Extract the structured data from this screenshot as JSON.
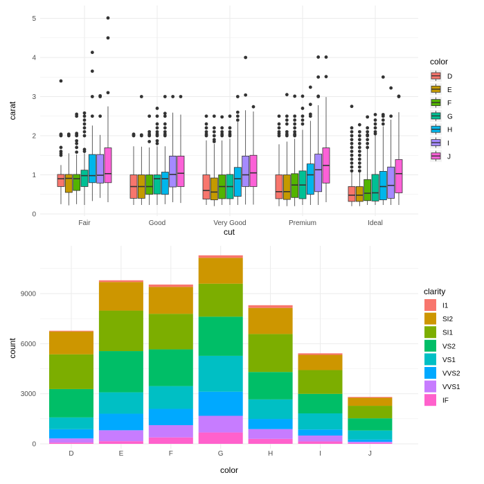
{
  "chart_data": [
    {
      "type": "boxplot",
      "xlabel": "cut",
      "ylabel": "carat",
      "categories": [
        "Fair",
        "Good",
        "Very Good",
        "Premium",
        "Ideal"
      ],
      "ylim": [
        0,
        5.1
      ],
      "yticks": [
        "0",
        "1",
        "2",
        "3",
        "4",
        "5"
      ],
      "grid": true,
      "legend": {
        "title": "color",
        "position": "right",
        "entries": [
          "D",
          "E",
          "F",
          "G",
          "H",
          "I",
          "J"
        ]
      },
      "colors": [
        "#F8766D",
        "#C49A00",
        "#53B400",
        "#00C094",
        "#00B6EB",
        "#A58AFF",
        "#FB61D7"
      ],
      "stats_order": [
        "whisker_low",
        "q1",
        "median",
        "q3",
        "whisker_high"
      ],
      "boxes": {
        "Fair": [
          {
            "stats": [
              0.25,
              0.7,
              0.9,
              1.01,
              1.25
            ],
            "outliers": [
              1.5,
              1.55,
              1.6,
              1.7,
              2.0,
              2.02,
              2.04,
              3.4
            ]
          },
          {
            "stats": [
              0.22,
              0.55,
              0.91,
              1.01,
              1.55
            ],
            "outliers": [
              2.0,
              2.02,
              2.04
            ]
          },
          {
            "stats": [
              0.25,
              0.6,
              0.9,
              1.01,
              1.52
            ],
            "outliers": [
              1.58,
              1.7,
              1.8,
              1.87,
              2.0,
              2.02,
              2.06,
              2.5,
              2.55
            ]
          },
          {
            "stats": [
              0.23,
              0.7,
              0.98,
              1.12,
              1.55
            ],
            "outliers": [
              1.6,
              1.65,
              2.0,
              2.1,
              2.2,
              2.3,
              2.4,
              2.5,
              2.58
            ]
          },
          {
            "stats": [
              0.33,
              0.8,
              0.98,
              1.52,
              2.26
            ],
            "outliers": [
              2.5,
              3.0,
              3.65,
              4.13
            ]
          },
          {
            "stats": [
              0.41,
              0.79,
              0.99,
              1.52,
              2.02
            ],
            "outliers": [
              2.5,
              3.0,
              3.02
            ]
          },
          {
            "stats": [
              0.3,
              0.8,
              1.03,
              1.69,
              2.75
            ],
            "outliers": [
              3.1,
              4.5,
              5.01
            ]
          }
        ],
        "Good": [
          {
            "stats": [
              0.23,
              0.4,
              0.7,
              1.0,
              1.73
            ],
            "outliers": [
              2.0,
              2.02,
              2.04
            ]
          },
          {
            "stats": [
              0.23,
              0.4,
              0.7,
              1.0,
              1.72
            ],
            "outliers": [
              2.0,
              2.02,
              3.0
            ]
          },
          {
            "stats": [
              0.23,
              0.5,
              0.7,
              1.0,
              1.7
            ],
            "outliers": [
              1.85,
              2.0,
              2.04,
              2.1,
              2.5
            ]
          },
          {
            "stats": [
              0.23,
              0.51,
              0.9,
              1.0,
              1.73
            ],
            "outliers": [
              1.8,
              1.87,
              2.0,
              2.04,
              2.1,
              2.2,
              2.3,
              2.5,
              2.7
            ]
          },
          {
            "stats": [
              0.25,
              0.5,
              0.9,
              1.07,
              1.73
            ],
            "outliers": [
              2.0,
              2.04,
              2.1,
              2.2,
              2.3,
              2.5,
              2.57,
              3.0
            ]
          },
          {
            "stats": [
              0.3,
              0.69,
              1.01,
              1.48,
              2.59
            ],
            "outliers": [
              3.0
            ]
          },
          {
            "stats": [
              0.28,
              0.7,
              1.04,
              1.48,
              2.54
            ],
            "outliers": [
              3.0
            ]
          }
        ],
        "Very Good": [
          {
            "stats": [
              0.23,
              0.38,
              0.6,
              1.0,
              1.88
            ],
            "outliers": [
              2.0,
              2.04,
              2.1,
              2.2,
              2.3,
              2.5
            ]
          },
          {
            "stats": [
              0.2,
              0.36,
              0.56,
              0.92,
              1.79
            ],
            "outliers": [
              1.85,
              1.9,
              2.0,
              2.1,
              2.2,
              2.5
            ]
          },
          {
            "stats": [
              0.23,
              0.39,
              0.7,
              1.0,
              1.88
            ],
            "outliers": [
              2.0,
              2.04,
              2.1,
              2.2,
              2.48
            ]
          },
          {
            "stats": [
              0.23,
              0.39,
              0.7,
              1.01,
              1.92
            ],
            "outliers": [
              2.0,
              2.04,
              2.1,
              2.2,
              2.5
            ]
          },
          {
            "stats": [
              0.23,
              0.45,
              0.9,
              1.19,
              2.35
            ],
            "outliers": [
              2.4,
              2.5,
              2.6,
              3.0
            ]
          },
          {
            "stats": [
              0.24,
              0.7,
              1.0,
              1.48,
              2.65
            ],
            "outliers": [
              3.04,
              4.0
            ]
          },
          {
            "stats": [
              0.24,
              0.7,
              1.05,
              1.5,
              2.62
            ],
            "outliers": [
              2.74
            ]
          }
        ],
        "Premium": [
          {
            "stats": [
              0.2,
              0.39,
              0.57,
              1.0,
              1.78
            ],
            "outliers": [
              2.0,
              2.05,
              2.1,
              2.2,
              2.3,
              2.5
            ]
          },
          {
            "stats": [
              0.2,
              0.37,
              0.57,
              1.0,
              1.85
            ],
            "outliers": [
              2.0,
              2.04,
              2.1,
              2.3,
              2.4,
              2.5,
              3.05
            ]
          },
          {
            "stats": [
              0.2,
              0.42,
              0.74,
              1.03,
              1.92
            ],
            "outliers": [
              2.0,
              2.02,
              2.04,
              2.1,
              2.2,
              2.3,
              2.4,
              2.5,
              3.01
            ]
          },
          {
            "stats": [
              0.23,
              0.39,
              0.74,
              1.1,
              2.15
            ],
            "outliers": [
              2.3,
              2.4,
              2.5,
              2.7,
              3.01
            ]
          },
          {
            "stats": [
              0.23,
              0.5,
              1.0,
              1.28,
              2.38
            ],
            "outliers": [
              2.5,
              2.55,
              2.8,
              3.24
            ]
          },
          {
            "stats": [
              0.23,
              0.57,
              1.13,
              1.53,
              2.78
            ],
            "outliers": [
              3.0,
              3.01,
              3.5,
              4.01
            ]
          },
          {
            "stats": [
              0.3,
              0.79,
              1.24,
              1.69,
              2.99
            ],
            "outliers": [
              3.51,
              4.01
            ]
          }
        ],
        "Ideal": [
          {
            "stats": [
              0.2,
              0.32,
              0.48,
              0.7,
              1.06
            ],
            "outliers": [
              1.1,
              1.2,
              1.3,
              1.4,
              1.5,
              1.6,
              1.7,
              1.8,
              1.9,
              2.0,
              2.1,
              2.2,
              2.75
            ]
          },
          {
            "stats": [
              0.2,
              0.32,
              0.48,
              0.7,
              1.06
            ],
            "outliers": [
              1.1,
              1.2,
              1.3,
              1.4,
              1.5,
              1.6,
              1.7,
              1.8,
              1.9,
              2.0,
              2.1,
              2.28
            ]
          },
          {
            "stats": [
              0.23,
              0.34,
              0.53,
              0.88,
              1.68
            ],
            "outliers": [
              1.7,
              1.8,
              1.9,
              2.0,
              2.02,
              2.1,
              2.2,
              2.48
            ]
          },
          {
            "stats": [
              0.23,
              0.33,
              0.54,
              1.01,
              2.03
            ],
            "outliers": [
              2.05,
              2.1,
              2.2,
              2.3,
              2.4,
              2.54
            ]
          },
          {
            "stats": [
              0.23,
              0.36,
              0.7,
              1.09,
              2.24
            ],
            "outliers": [
              2.3,
              2.4,
              2.5,
              2.54,
              3.5
            ]
          },
          {
            "stats": [
              0.23,
              0.4,
              0.73,
              1.2,
              2.41
            ],
            "outliers": [
              2.5,
              3.22
            ]
          },
          {
            "stats": [
              0.23,
              0.54,
              1.03,
              1.39,
              2.6
            ],
            "outliers": [
              3.0,
              3.01
            ]
          }
        ]
      }
    },
    {
      "type": "bar",
      "stacked": true,
      "xlabel": "color",
      "ylabel": "count",
      "categories": [
        "D",
        "E",
        "F",
        "G",
        "H",
        "I",
        "J"
      ],
      "ylim": [
        0,
        11800
      ],
      "yticks": [
        "0",
        "3000",
        "6000",
        "9000"
      ],
      "grid": true,
      "legend": {
        "title": "clarity",
        "position": "right"
      },
      "series": [
        {
          "name": "I1",
          "color": "#F8766D",
          "values": [
            42,
            102,
            143,
            150,
            162,
            92,
            50
          ]
        },
        {
          "name": "SI2",
          "color": "#CD9600",
          "values": [
            1370,
            1713,
            1609,
            1548,
            1563,
            912,
            479
          ]
        },
        {
          "name": "SI1",
          "color": "#7CAE00",
          "values": [
            2083,
            2426,
            2131,
            1976,
            2275,
            1424,
            750
          ]
        },
        {
          "name": "VS2",
          "color": "#00BE67",
          "values": [
            1697,
            2470,
            2201,
            2347,
            1643,
            1169,
            731
          ]
        },
        {
          "name": "VS1",
          "color": "#00BFC4",
          "values": [
            705,
            1281,
            1364,
            2148,
            1169,
            962,
            542
          ]
        },
        {
          "name": "VVS2",
          "color": "#00A9FF",
          "values": [
            553,
            991,
            975,
            1443,
            608,
            365,
            131
          ]
        },
        {
          "name": "VVS1",
          "color": "#C77CFF",
          "values": [
            252,
            656,
            734,
            999,
            585,
            355,
            74
          ]
        },
        {
          "name": "IF",
          "color": "#FF61CC",
          "values": [
            73,
            158,
            385,
            681,
            299,
            143,
            51
          ]
        }
      ]
    }
  ]
}
